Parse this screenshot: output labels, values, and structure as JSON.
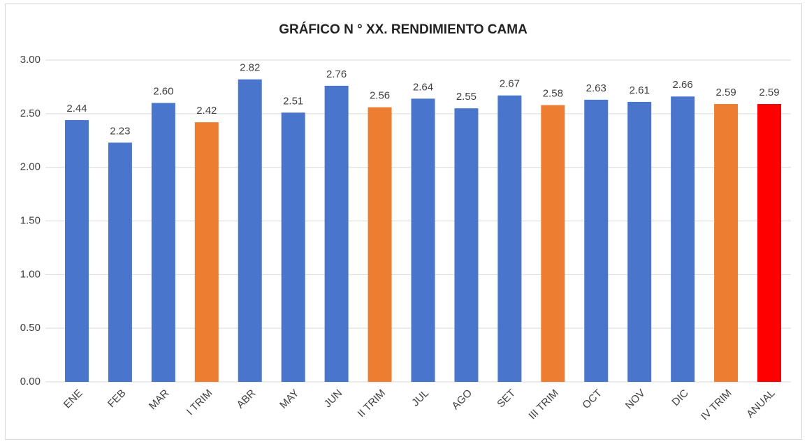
{
  "chart_data": {
    "type": "bar",
    "title": "GRÁFICO N ° XX. RENDIMIENTO CAMA",
    "categories": [
      "ENE",
      "FEB",
      "MAR",
      "I TRIM",
      "ABR",
      "MAY",
      "JUN",
      "II TRIM",
      "JUL",
      "AGO",
      "SET",
      "III TRIM",
      "OCT",
      "NOV",
      "DIC",
      "IV TRIM",
      "ANUAL"
    ],
    "values": [
      2.44,
      2.23,
      2.6,
      2.42,
      2.82,
      2.51,
      2.76,
      2.56,
      2.64,
      2.55,
      2.67,
      2.58,
      2.63,
      2.61,
      2.66,
      2.59,
      2.59
    ],
    "value_labels": [
      "2.44",
      "2.23",
      "2.60",
      "2.42",
      "2.82",
      "2.51",
      "2.76",
      "2.56",
      "2.64",
      "2.55",
      "2.67",
      "2.58",
      "2.63",
      "2.61",
      "2.66",
      "2.59",
      "2.59"
    ],
    "colors": [
      "#4a75cc",
      "#4a75cc",
      "#4a75cc",
      "#ed7d31",
      "#4a75cc",
      "#4a75cc",
      "#4a75cc",
      "#ed7d31",
      "#4a75cc",
      "#4a75cc",
      "#4a75cc",
      "#ed7d31",
      "#4a75cc",
      "#4a75cc",
      "#4a75cc",
      "#ed7d31",
      "#ff0000"
    ],
    "ylim": [
      0,
      3
    ],
    "yticks": [
      {
        "value": 0,
        "label": "0.00"
      },
      {
        "value": 0.5,
        "label": "0.50"
      },
      {
        "value": 1,
        "label": "1.00"
      },
      {
        "value": 1.5,
        "label": "1.50"
      },
      {
        "value": 2,
        "label": "2.00"
      },
      {
        "value": 2.5,
        "label": "2.50"
      },
      {
        "value": 3,
        "label": "3.00"
      }
    ],
    "grid": true
  }
}
